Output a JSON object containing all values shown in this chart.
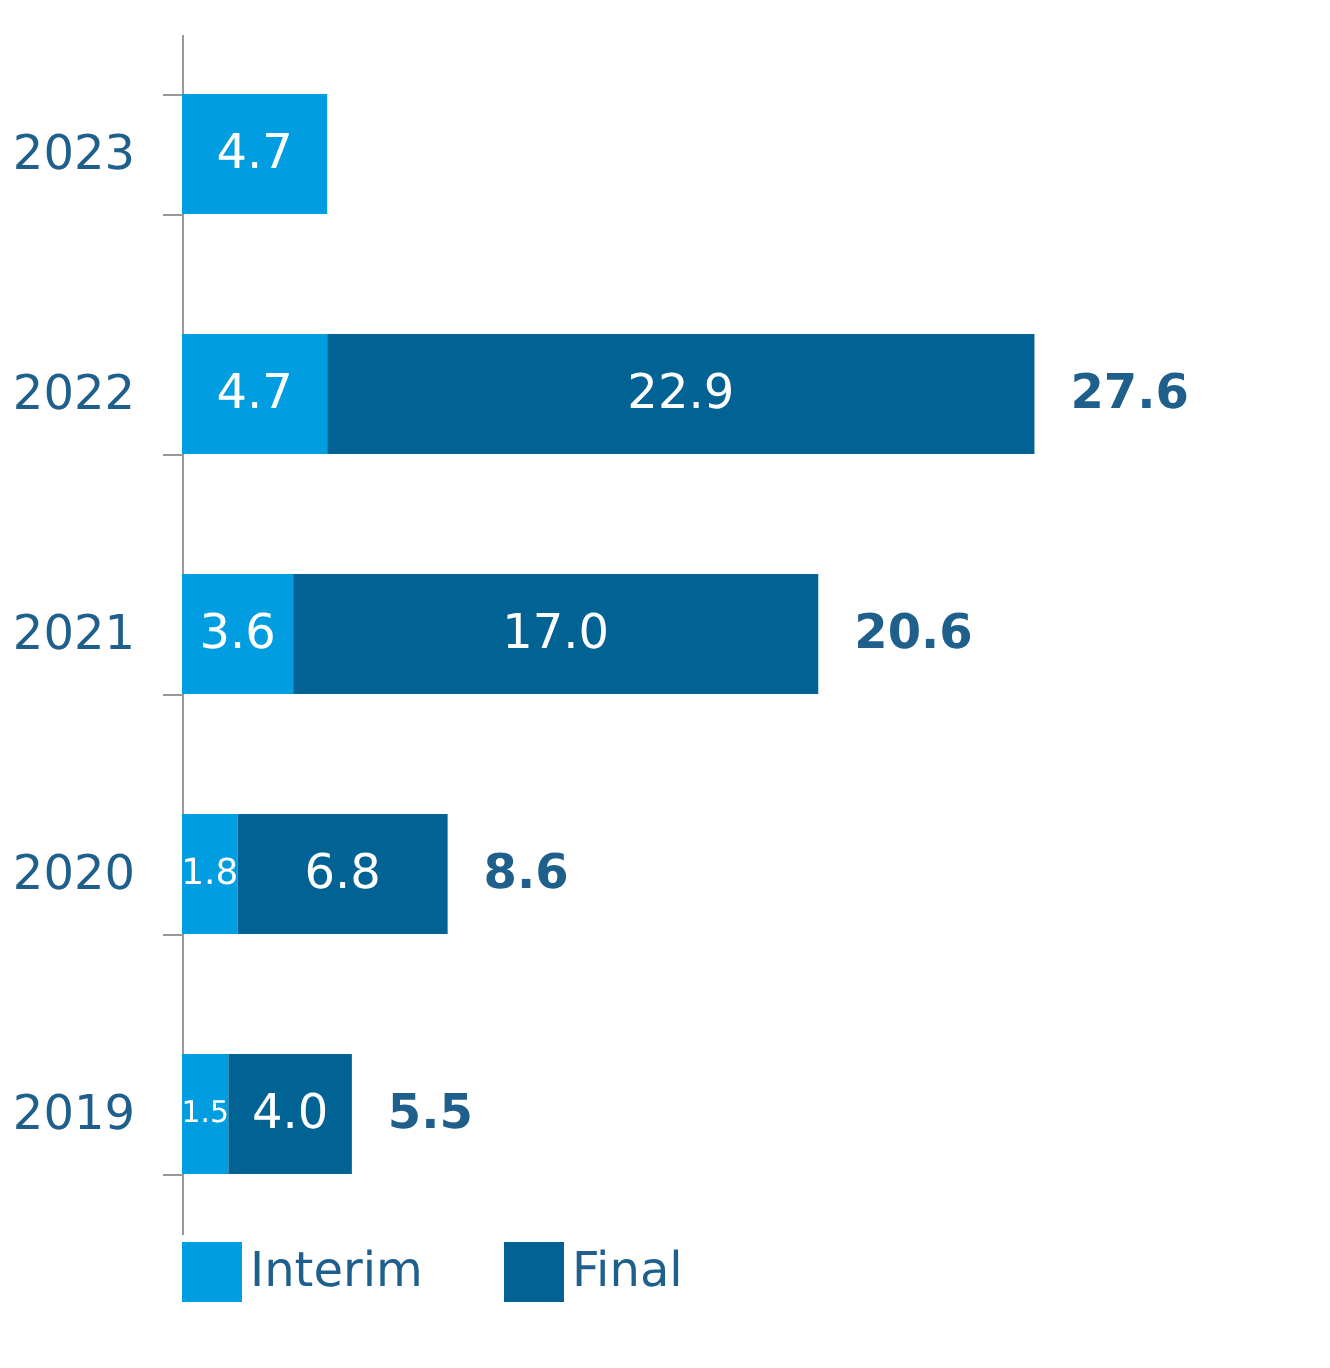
{
  "chart_data": {
    "type": "bar",
    "orientation": "horizontal",
    "stacked": true,
    "categories": [
      "2023",
      "2022",
      "2021",
      "2020",
      "2019"
    ],
    "series": [
      {
        "name": "Interim",
        "color": "#009ee0",
        "values": [
          4.7,
          4.7,
          3.6,
          1.8,
          1.5
        ],
        "value_labels": [
          "4.7",
          "4.7",
          "3.6",
          "1.8",
          "1.5"
        ]
      },
      {
        "name": "Final",
        "color": "#006394",
        "values": [
          null,
          22.9,
          17.0,
          6.8,
          4.0
        ],
        "value_labels": [
          null,
          "22.9",
          "17.0",
          "6.8",
          "4.0"
        ]
      }
    ],
    "totals": [
      null,
      "27.6",
      "20.6",
      "8.6",
      "5.5"
    ],
    "legend": "bottom",
    "tick_labels": "y",
    "grid": false
  }
}
